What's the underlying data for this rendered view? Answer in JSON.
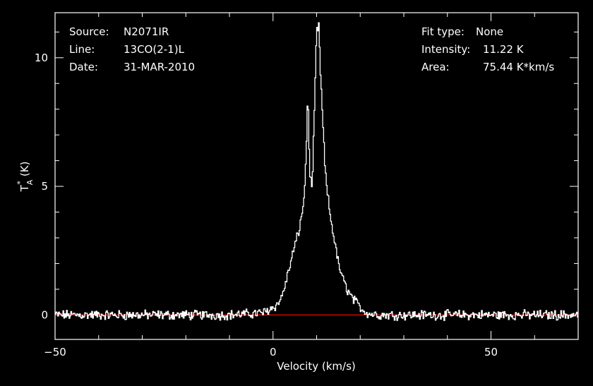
{
  "chart_data": {
    "type": "line",
    "xlabel": "Velocity (km/s)",
    "ylabel_main": "T",
    "ylabel_sup": "*",
    "ylabel_sub": "A",
    "ylabel_unit": "(K)",
    "xlim": [
      -50,
      70
    ],
    "ylim": [
      -0.95,
      11.75
    ],
    "x_ticks": [
      -50,
      0,
      50
    ],
    "y_ticks": [
      0,
      5,
      10
    ],
    "colors": {
      "background": "#000000",
      "spectrum": "#ffffff",
      "baseline": "#ff0000"
    },
    "baseline": {
      "name": "baseline",
      "y": 0
    },
    "series": [
      {
        "x": [
          -50,
          -40,
          -30,
          -20,
          -10,
          -5,
          -3,
          -2,
          0,
          1,
          2,
          3,
          4,
          5,
          6,
          7,
          7.5,
          8,
          8.5,
          9,
          9.5,
          10,
          10.5,
          11,
          12,
          13,
          14,
          15,
          16,
          17,
          18,
          19,
          20,
          21,
          22,
          25,
          30,
          40,
          50,
          60,
          70
        ],
        "values": [
          0,
          0,
          0,
          0,
          0,
          0.05,
          0.08,
          0.1,
          0.3,
          0.4,
          0.7,
          1.3,
          2.0,
          2.7,
          3.3,
          4.3,
          5.7,
          8.6,
          5.3,
          5.0,
          7.9,
          11.0,
          11.2,
          9.0,
          5.5,
          4.0,
          3.0,
          2.0,
          1.4,
          1.0,
          0.7,
          0.5,
          0.3,
          0.15,
          0.05,
          0,
          0,
          0,
          0,
          0,
          0
        ]
      }
    ]
  },
  "info_left": [
    {
      "label": "Source:",
      "value": "N2071IR"
    },
    {
      "label": "Line:",
      "value": "13CO(2-1)L"
    },
    {
      "label": "Date:",
      "value": "31-MAR-2010"
    }
  ],
  "info_right": [
    {
      "label": "Fit type:",
      "value": "None"
    },
    {
      "label": "Intensity:",
      "value": "11.22 K"
    },
    {
      "label": "Area:",
      "value": "75.44 K*km/s"
    }
  ]
}
